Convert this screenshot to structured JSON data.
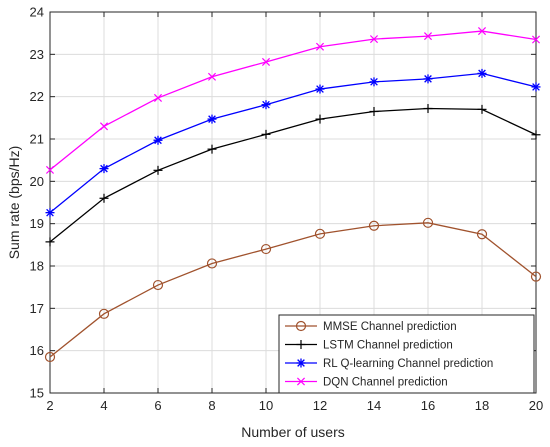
{
  "chart_data": {
    "type": "line",
    "xlabel": "Number of users",
    "ylabel": "Sum rate (bps/Hz)",
    "x": [
      2,
      4,
      6,
      8,
      10,
      12,
      14,
      16,
      18,
      20
    ],
    "xlim": [
      2,
      20
    ],
    "ylim": [
      15,
      24
    ],
    "xticks": [
      2,
      4,
      6,
      8,
      10,
      12,
      14,
      16,
      18,
      20
    ],
    "yticks": [
      15,
      16,
      17,
      18,
      19,
      20,
      21,
      22,
      23,
      24
    ],
    "grid": true,
    "legend_position": "bottom-right",
    "series": [
      {
        "name": "MMSE Channel prediction",
        "color": "#a0522d",
        "marker": "circle",
        "values": [
          15.85,
          16.87,
          17.55,
          18.06,
          18.4,
          18.76,
          18.95,
          19.02,
          18.75,
          17.75
        ]
      },
      {
        "name": "LSTM Channel prediction",
        "color": "#000000",
        "marker": "plus",
        "values": [
          18.57,
          19.6,
          20.26,
          20.76,
          21.11,
          21.47,
          21.65,
          21.72,
          21.7,
          21.1
        ]
      },
      {
        "name": "RL Q-learning Channel prediction",
        "color": "#0000ff",
        "marker": "star",
        "values": [
          19.26,
          20.3,
          20.97,
          21.47,
          21.81,
          22.18,
          22.35,
          22.42,
          22.55,
          22.23
        ]
      },
      {
        "name": "DQN Channel prediction",
        "color": "#ff00ff",
        "marker": "x",
        "values": [
          20.27,
          21.3,
          21.97,
          22.47,
          22.82,
          23.18,
          23.36,
          23.43,
          23.55,
          23.35
        ]
      }
    ]
  }
}
